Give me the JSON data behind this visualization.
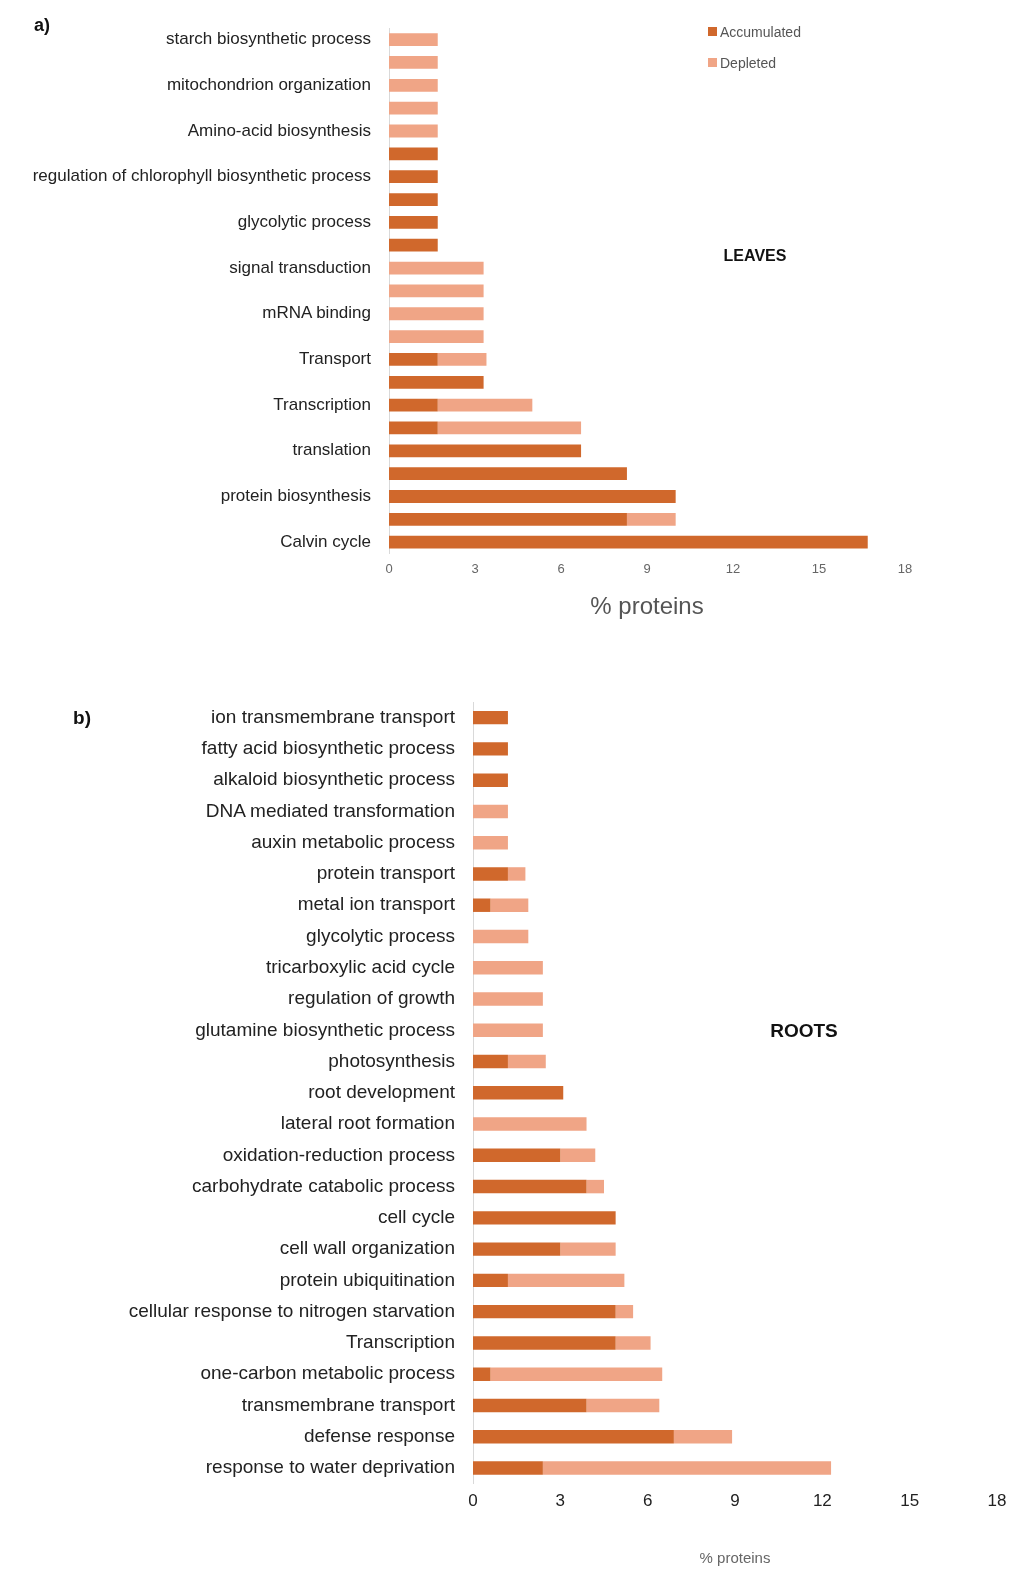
{
  "chart_data": [
    {
      "type": "bar",
      "orientation": "horizontal",
      "stacked": true,
      "categories": [
        "starch biosynthetic process",
        null,
        "mitochondrion organization",
        null,
        "Amino-acid biosynthesis",
        null,
        "regulation of chlorophyll biosynthetic process",
        null,
        "glycolytic process",
        null,
        "signal transduction",
        null,
        "mRNA binding",
        null,
        "Transport",
        null,
        "Transcription",
        null,
        "translation",
        null,
        "protein biosynthesis",
        null,
        "Calvin cycle"
      ],
      "series": [
        {
          "name": "Accumulated",
          "color": "#d0682c",
          "values": [
            null,
            null,
            null,
            null,
            null,
            1.7,
            1.7,
            1.7,
            1.7,
            1.7,
            null,
            null,
            null,
            null,
            1.7,
            3.3,
            1.7,
            1.7,
            6.7,
            8.3,
            10,
            8.3,
            16.7
          ]
        },
        {
          "name": "Depleted",
          "color": "#f0a586",
          "values": [
            1.7,
            1.7,
            1.7,
            1.7,
            1.7,
            null,
            null,
            null,
            null,
            null,
            3.3,
            3.3,
            3.3,
            3.3,
            1.7,
            null,
            3.3,
            5,
            null,
            null,
            null,
            1.7,
            null
          ]
        }
      ],
      "xlim": [
        0,
        18
      ],
      "xticks": [
        0,
        3,
        6,
        9,
        12,
        15,
        18
      ],
      "xlabel": "% proteins",
      "legend": "top right",
      "grid": false,
      "annotations": [
        "a)",
        "LEAVES"
      ]
    },
    {
      "type": "bar",
      "orientation": "horizontal",
      "stacked": true,
      "categories": [
        "ion transmembrane transport",
        "fatty acid biosynthetic process",
        "alkaloid biosynthetic process",
        "DNA mediated transformation",
        "auxin metabolic process",
        "protein transport",
        "metal ion transport",
        "glycolytic process",
        "tricarboxylic acid cycle",
        "regulation of growth",
        "glutamine biosynthetic process",
        "photosynthesis",
        "root development",
        "lateral root formation",
        "oxidation-reduction process",
        "carbohydrate catabolic process",
        "cell cycle",
        "cell wall organization",
        "protein ubiquitination",
        "cellular response to nitrogen starvation",
        "Transcription",
        "one-carbon metabolic process",
        "transmembrane transport",
        "defense response",
        "response to water deprivation"
      ],
      "series": [
        {
          "color": "#d0682c",
          "values": [
            1.2,
            1.2,
            1.2,
            null,
            null,
            1.2,
            0.6,
            null,
            null,
            null,
            null,
            1.2,
            3.1,
            null,
            3.0,
            3.9,
            4.9,
            3.0,
            1.2,
            4.9,
            4.9,
            0.6,
            3.9,
            6.9,
            2.4
          ]
        },
        {
          "color": "#f0a586",
          "values": [
            null,
            null,
            null,
            1.2,
            1.2,
            0.6,
            1.3,
            1.9,
            2.4,
            2.4,
            2.4,
            1.3,
            null,
            3.9,
            1.2,
            0.6,
            null,
            1.9,
            4.0,
            0.6,
            1.2,
            5.9,
            2.5,
            2.0,
            9.9
          ]
        }
      ],
      "xlim": [
        0,
        18
      ],
      "xticks": [
        0,
        3,
        6,
        9,
        12,
        15,
        18
      ],
      "xlabel": "% proteins",
      "grid": false,
      "annotations": [
        "b)",
        "ROOTS"
      ]
    }
  ]
}
